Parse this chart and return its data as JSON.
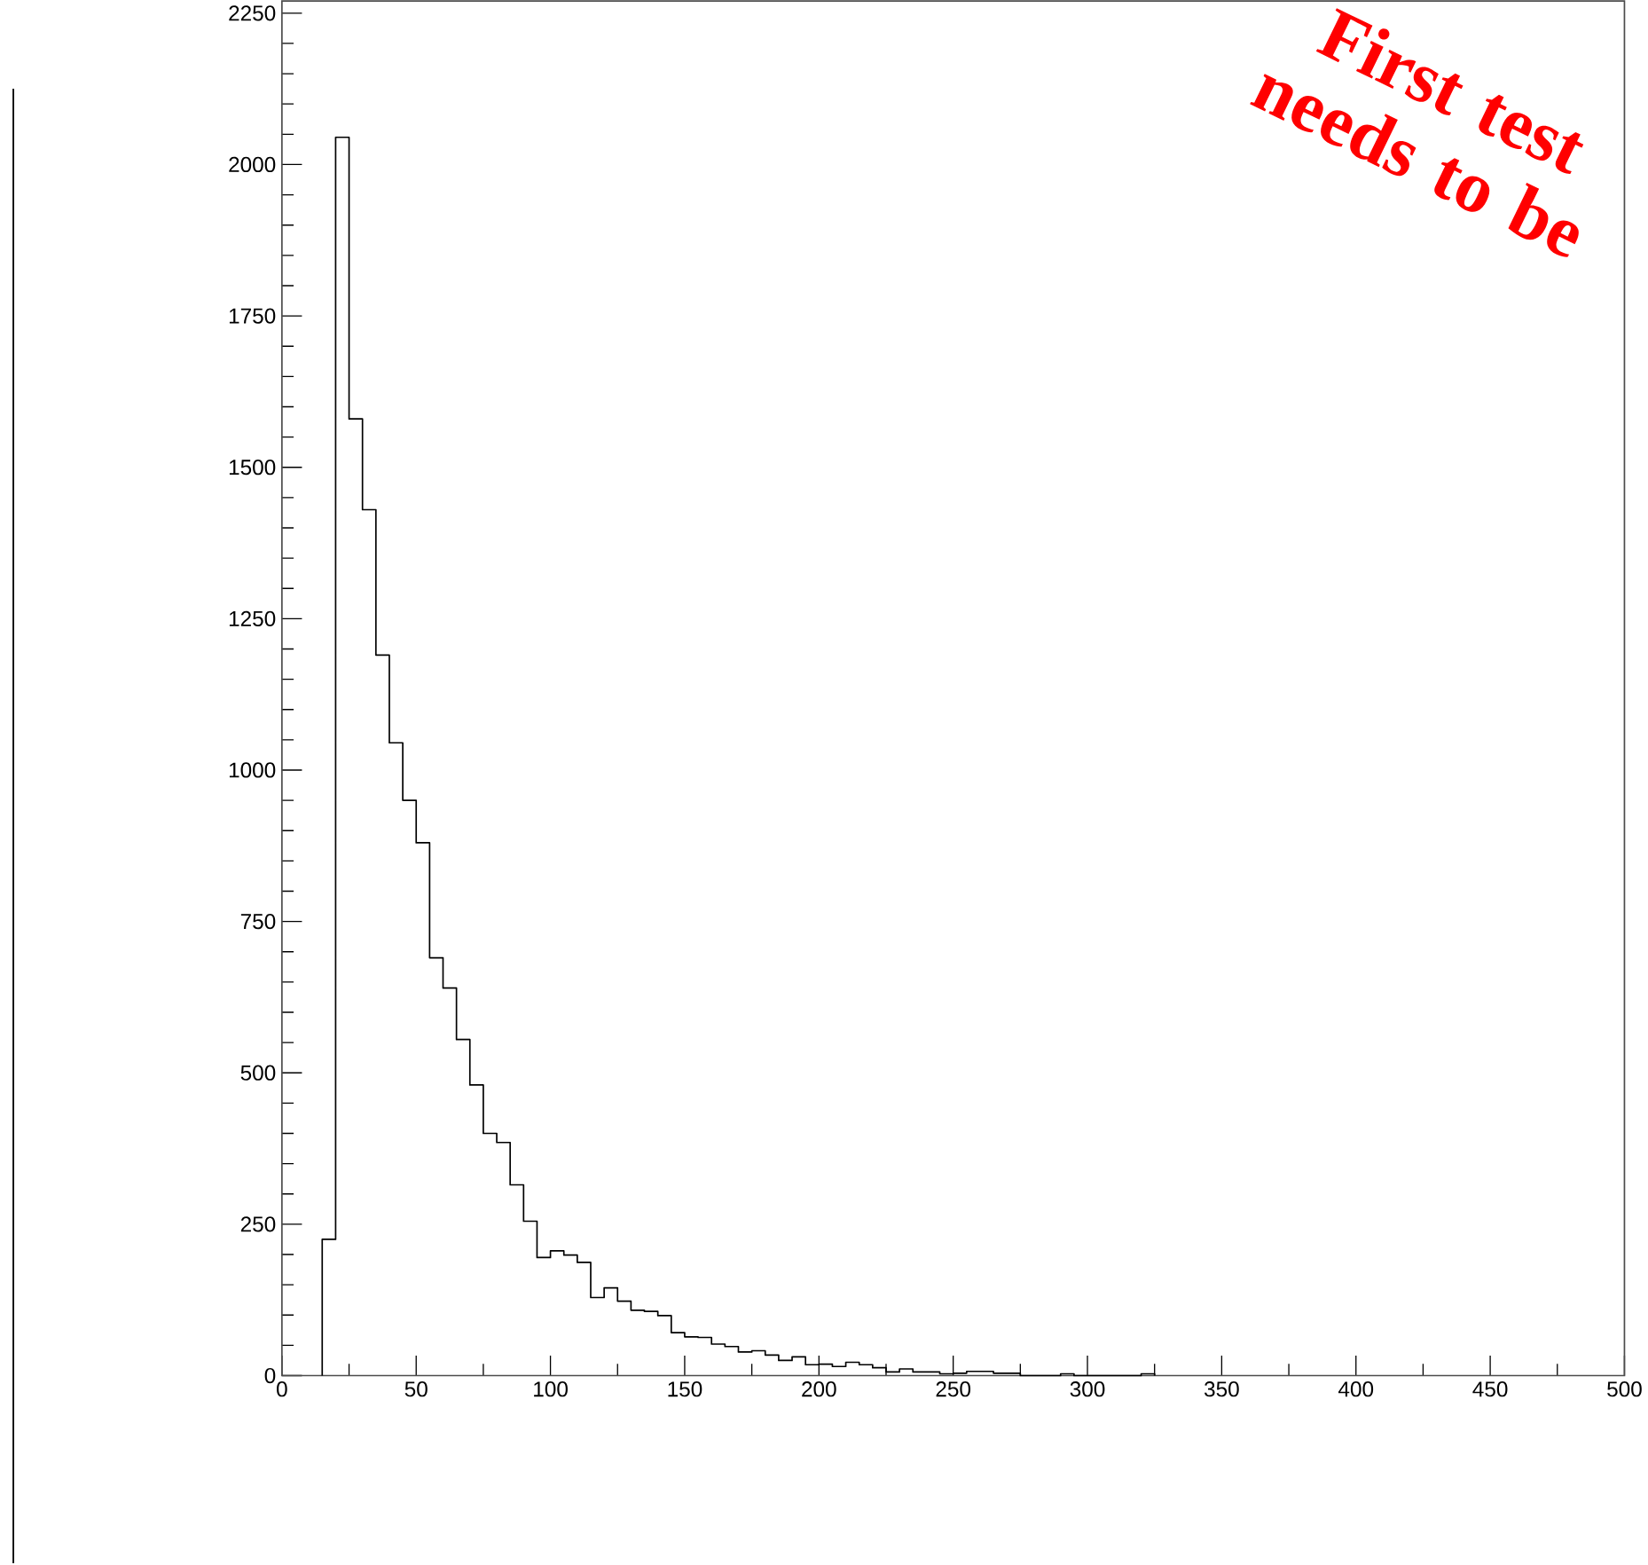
{
  "chart_data": {
    "type": "histogram",
    "bins": [
      15,
      20,
      25,
      30,
      35,
      40,
      45,
      50,
      55,
      60,
      65,
      70,
      75,
      80,
      85,
      90,
      95,
      100,
      105,
      110,
      115,
      120,
      125,
      130,
      135,
      140,
      145,
      150,
      155,
      160,
      165,
      170,
      175,
      180,
      185,
      190,
      195,
      200,
      205,
      210,
      215,
      220,
      225,
      230,
      235,
      240,
      245,
      250,
      255,
      260,
      265,
      270,
      275,
      280,
      285,
      290,
      295,
      300,
      305,
      310,
      315,
      320,
      325
    ],
    "values": [
      225,
      2045,
      1580,
      1430,
      1190,
      1045,
      950,
      880,
      690,
      640,
      555,
      480,
      400,
      385,
      315,
      255,
      195,
      206,
      199,
      187,
      129,
      145,
      123,
      108,
      106,
      99,
      71,
      64,
      63,
      52,
      48,
      39,
      41,
      34,
      25,
      31,
      18,
      19,
      15,
      22,
      18,
      13,
      6,
      11,
      6,
      6,
      3,
      4,
      7,
      7,
      4,
      4,
      0,
      0,
      0,
      3,
      0,
      0,
      0,
      0,
      0,
      3
    ],
    "color": "#000000",
    "xlim": [
      0,
      500
    ],
    "ylim": [
      0,
      2270
    ],
    "xticks": [
      0,
      50,
      100,
      150,
      200,
      250,
      300,
      350,
      400,
      450,
      500
    ],
    "yticks": [
      0,
      250,
      500,
      750,
      1000,
      1250,
      1500,
      1750,
      2000,
      2250
    ],
    "annotations": [
      "First test needs to be"
    ]
  }
}
